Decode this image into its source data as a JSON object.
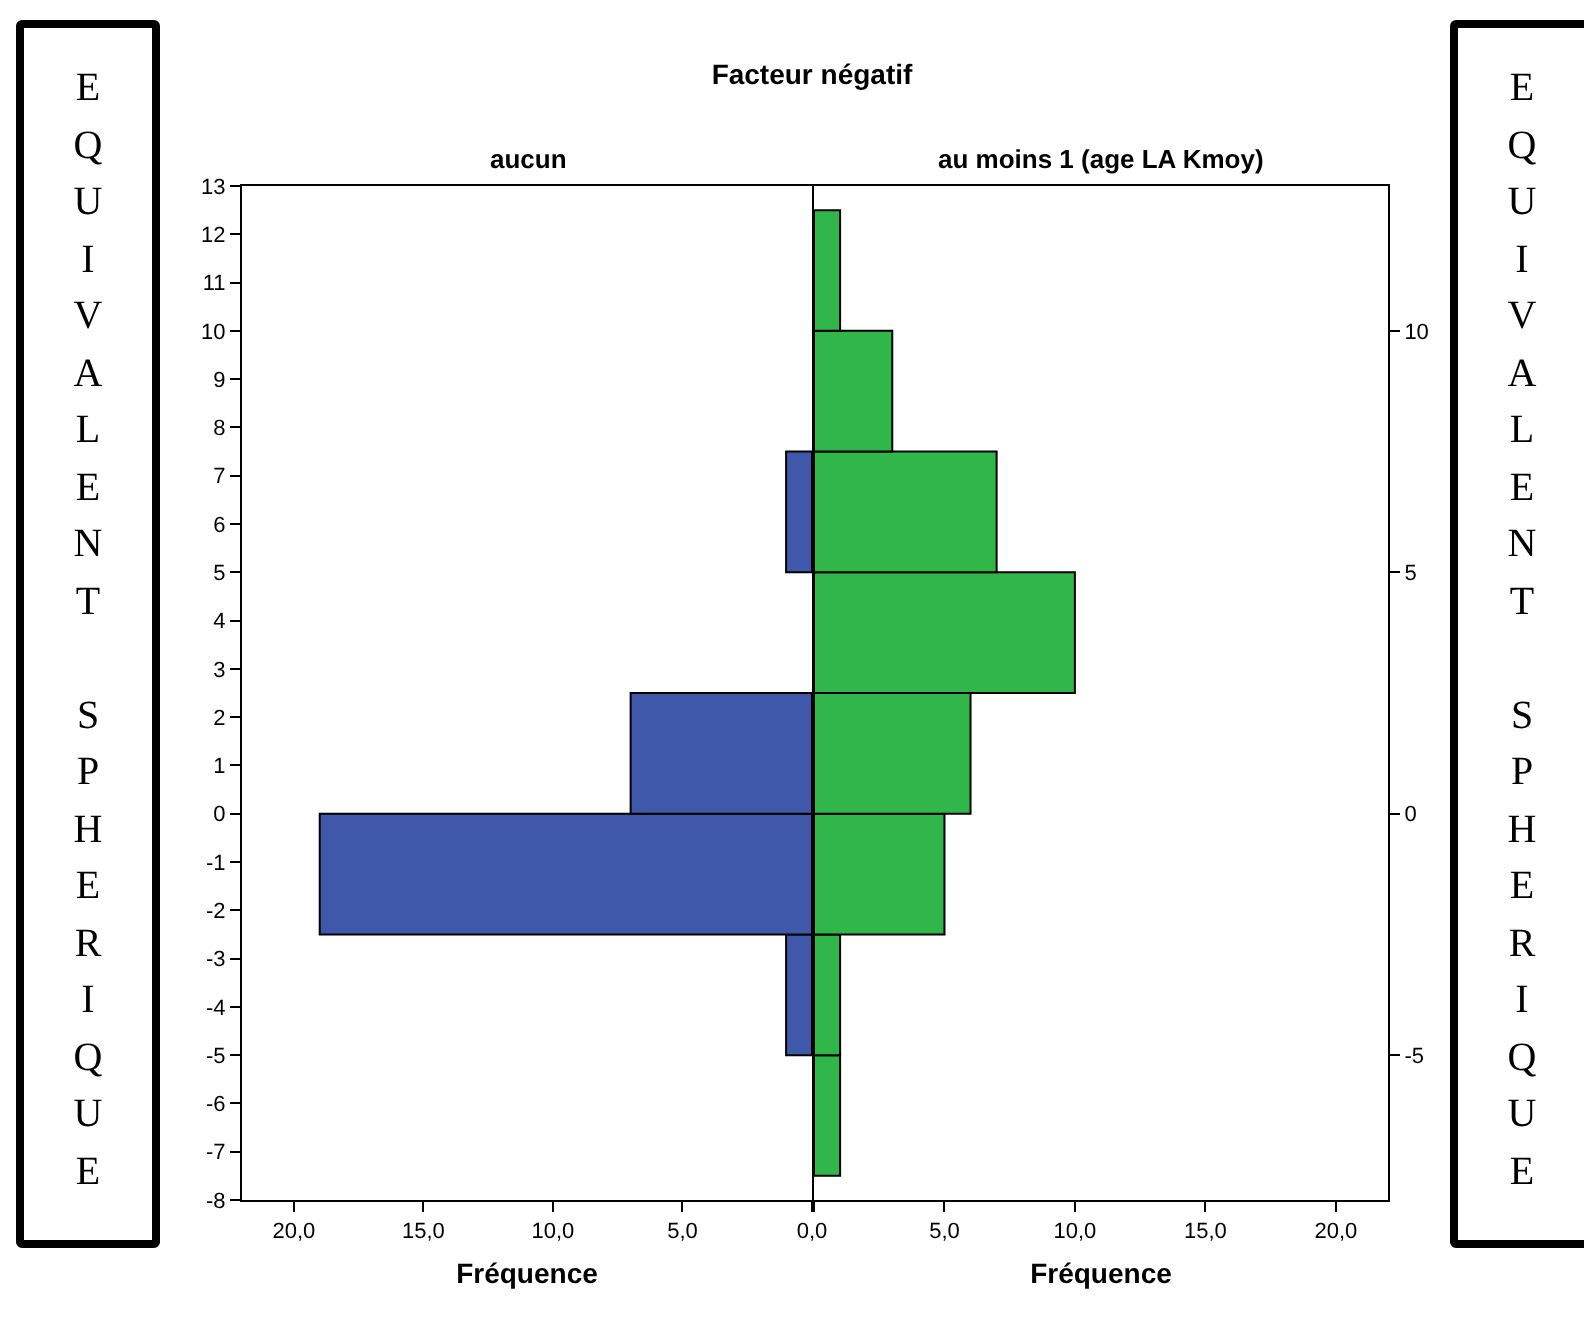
{
  "chart_data": [
    {
      "type": "histogram",
      "orientation": "horizontal",
      "title": "Facteur négatif",
      "subtitle": "aucun",
      "xlabel": "Fréquence",
      "ylabel": "EQUIVALENT SPHERIQUE",
      "color": "#3f58a9",
      "bins": [
        -7.5,
        -5,
        -2.5,
        0,
        2.5,
        5,
        7.5,
        10,
        12.5
      ],
      "values": [
        0,
        1,
        19,
        7,
        0,
        1,
        0,
        0
      ],
      "xlim": [
        22,
        0
      ],
      "xticks": [
        {
          "value": 20,
          "label": "20,0"
        },
        {
          "value": 15,
          "label": "15,0"
        },
        {
          "value": 10,
          "label": "10,0"
        },
        {
          "value": 5,
          "label": "5,0"
        },
        {
          "value": 0,
          "label": "0,0"
        }
      ],
      "ylim": [
        -8,
        13
      ],
      "yticks": [
        -8,
        -7,
        -6,
        -5,
        -4,
        -3,
        -2,
        -1,
        0,
        1,
        2,
        3,
        4,
        5,
        6,
        7,
        8,
        9,
        10,
        11,
        12,
        13
      ]
    },
    {
      "type": "histogram",
      "orientation": "horizontal",
      "subtitle": "au moins 1 (age LA Kmoy)",
      "xlabel": "Fréquence",
      "ylabel": "EQUIVALENT SPHERIQUE",
      "color": "#31b64a",
      "bins": [
        -7.5,
        -5,
        -2.5,
        0,
        2.5,
        5,
        7.5,
        10,
        12.5
      ],
      "values": [
        1,
        1,
        5,
        6,
        10,
        7,
        3,
        1
      ],
      "xlim": [
        0,
        22
      ],
      "xticks": [
        {
          "value": 0,
          "label": null
        },
        {
          "value": 5,
          "label": "5,0"
        },
        {
          "value": 10,
          "label": "10,0"
        },
        {
          "value": 15,
          "label": "15,0"
        },
        {
          "value": 20,
          "label": "20,0"
        }
      ],
      "ylim": [
        -8,
        13
      ],
      "yticks": [
        -5,
        0,
        5,
        10
      ]
    }
  ]
}
